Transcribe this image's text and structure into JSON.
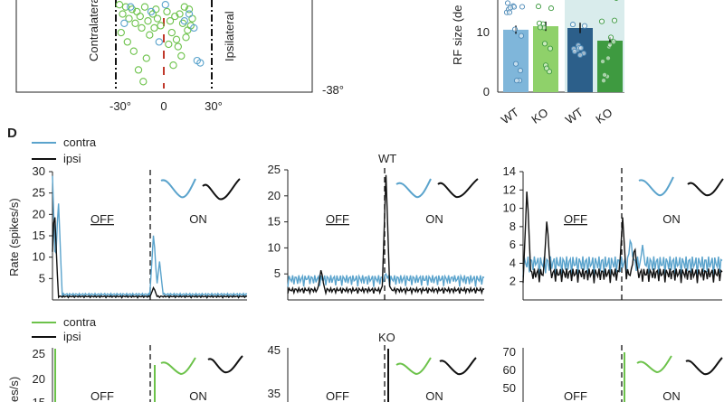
{
  "panel_c": {
    "left_label": "Contralateral",
    "right_label": "Ipsilateral",
    "x_ticks": [
      "-30°",
      "0",
      "30°"
    ],
    "y_tick_bottom": "-38°",
    "bar_y_label": "RF size (de",
    "bar_y_ticks": [
      "0",
      "10"
    ],
    "bar_x_labels": [
      "WT",
      "KO",
      "WT",
      "KO"
    ]
  },
  "panel_d": {
    "letter": "D",
    "ylabel": "Rate (spikes/s)",
    "ylabel_ko": "es/s)",
    "off_label": "OFF",
    "on_label": "ON",
    "wt_title": "WT",
    "ko_title": "KO",
    "legend_wt": [
      "contra",
      "ipsi"
    ],
    "legend_ko": [
      "contra",
      "ipsi"
    ],
    "colors": {
      "contra_wt": "#5aa3cc",
      "contra_ko": "#6cc24a",
      "ipsi": "#111111",
      "wt_dark": "#2c5f8a",
      "ko_dark": "#3e9a40"
    }
  },
  "chart_data": [
    {
      "type": "scatter",
      "panel": "C-left",
      "xlabel": "",
      "ylabel": "",
      "x_ticks": [
        -30,
        0,
        30
      ],
      "y_visible_min": -38,
      "series": [
        {
          "color": "#6cc24a",
          "x": [
            -28,
            -26,
            -24,
            -22,
            -20,
            -18,
            -17,
            -15,
            -14,
            -12,
            -10,
            -9,
            -7,
            -5,
            -4,
            -2,
            2,
            4,
            5,
            7,
            9,
            10,
            12,
            14,
            16,
            18,
            -23,
            -19,
            -11,
            -6,
            6,
            11,
            15,
            -27,
            -16,
            3,
            8,
            13,
            17,
            -13
          ],
          "y": [
            -2,
            -6,
            -3,
            -8,
            -4,
            -10,
            -5,
            -7,
            -12,
            -3,
            -9,
            -15,
            -6,
            -4,
            -8,
            -11,
            -5,
            -9,
            -14,
            -7,
            -20,
            -6,
            -10,
            -16,
            -4,
            -8,
            -18,
            -22,
            -25,
            -12,
            -28,
            -24,
            -13,
            -14,
            -30,
            -19,
            -17,
            -3,
            -11,
            -35
          ]
        },
        {
          "color": "#5aa3cc",
          "x": [
            -21,
            -8,
            1,
            13,
            19,
            21,
            23,
            -3,
            16,
            -25
          ],
          "y": [
            -3,
            -5,
            -2,
            -9,
            -12,
            -26,
            -27,
            -18,
            -6,
            -10
          ]
        }
      ]
    },
    {
      "type": "bar",
      "panel": "C-right",
      "ylabel": "RF size (de",
      "categories": [
        "WT",
        "KO",
        "WT",
        "KO"
      ],
      "values": [
        10.8,
        11.4,
        11.1,
        8.9
      ],
      "errors": [
        0.7,
        0.8,
        0.9,
        0.6
      ],
      "colors": [
        "#7fb6da",
        "#8fd16a",
        "#2c5f8a",
        "#3e9a40"
      ],
      "ylim": [
        0,
        16
      ],
      "y_ticks": [
        0,
        10
      ]
    },
    {
      "type": "line",
      "panel": "D-WT-1",
      "ylim": [
        0,
        30
      ],
      "y_ticks": [
        5,
        10,
        15,
        20,
        25,
        30
      ],
      "series": [
        {
          "color": "#5aa3cc",
          "peaks": [
            [
              0.0,
              29
            ],
            [
              0.03,
              24
            ],
            [
              0.52,
              16
            ],
            [
              0.55,
              9
            ]
          ],
          "baseline": 0.8
        },
        {
          "color": "#111111",
          "peaks": [
            [
              0.01,
              22
            ],
            [
              0.52,
              3
            ]
          ],
          "baseline": 0.5
        }
      ]
    },
    {
      "type": "line",
      "panel": "D-WT-2",
      "ylim": [
        0,
        25
      ],
      "y_ticks": [
        5,
        10,
        15,
        20,
        25
      ],
      "series": [
        {
          "color": "#5aa3cc",
          "peaks": [
            [
              0.1,
              4
            ],
            [
              0.5,
              5
            ],
            [
              0.85,
              4
            ]
          ],
          "baseline": 2.5
        },
        {
          "color": "#111111",
          "peaks": [
            [
              0.17,
              6
            ],
            [
              0.5,
              24
            ]
          ],
          "baseline": 1.2
        }
      ]
    },
    {
      "type": "line",
      "panel": "D-WT-3",
      "ylim": [
        0,
        14
      ],
      "y_ticks": [
        2,
        4,
        6,
        8,
        10,
        12,
        14
      ],
      "series": [
        {
          "color": "#5aa3cc",
          "peaks": [
            [
              0.06,
              4
            ],
            [
              0.54,
              7
            ],
            [
              0.6,
              6
            ]
          ],
          "baseline": 2.5
        },
        {
          "color": "#111111",
          "peaks": [
            [
              0.02,
              12.5
            ],
            [
              0.12,
              9
            ],
            [
              0.5,
              9
            ],
            [
              0.56,
              6
            ]
          ],
          "baseline": 1.8
        }
      ]
    }
  ]
}
